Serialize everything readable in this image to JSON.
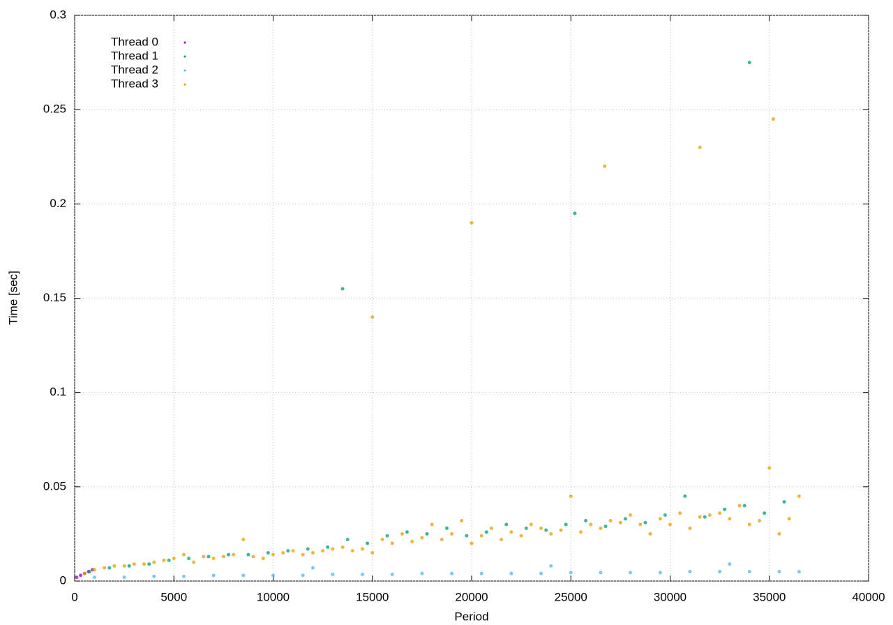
{
  "chart_data": {
    "type": "scatter",
    "x_label": "Period",
    "y_label": "Time [sec]",
    "xlim": [
      0,
      40000
    ],
    "ylim": [
      0,
      0.3
    ],
    "xticks": [
      0,
      5000,
      10000,
      15000,
      20000,
      25000,
      30000,
      35000,
      40000
    ],
    "yticks": [
      0,
      0.05,
      0.1,
      0.15,
      0.2,
      0.25,
      0.3
    ],
    "grid": true,
    "legend": "top-left",
    "series": [
      {
        "name": "Thread 0",
        "color": "#9400d3",
        "x": [
          100,
          300,
          500,
          700,
          900
        ],
        "values": [
          0.002,
          0.003,
          0.004,
          0.005,
          0.006
        ]
      },
      {
        "name": "Thread 1",
        "color": "#009e73",
        "x": [
          750,
          1750,
          2750,
          3750,
          4750,
          5750,
          6750,
          7750,
          8750,
          9750,
          10750,
          11750,
          12750,
          13750,
          14750,
          15750,
          16750,
          17750,
          18750,
          19750,
          20750,
          21750,
          22750,
          23750,
          24750,
          25750,
          26750,
          27750,
          28750,
          29750,
          30750,
          31750,
          32750,
          33750,
          34750,
          35750,
          13500,
          25200,
          34000
        ],
        "values": [
          0.005,
          0.007,
          0.008,
          0.009,
          0.011,
          0.012,
          0.013,
          0.014,
          0.014,
          0.015,
          0.016,
          0.017,
          0.018,
          0.022,
          0.02,
          0.024,
          0.026,
          0.025,
          0.028,
          0.024,
          0.026,
          0.03,
          0.028,
          0.027,
          0.03,
          0.032,
          0.029,
          0.033,
          0.031,
          0.035,
          0.045,
          0.034,
          0.038,
          0.04,
          0.036,
          0.042,
          0.155,
          0.195,
          0.275
        ]
      },
      {
        "name": "Thread 2",
        "color": "#56b4e9",
        "x": [
          1000,
          2500,
          4000,
          5500,
          7000,
          8500,
          10000,
          11500,
          13000,
          14500,
          16000,
          17500,
          19000,
          20500,
          22000,
          23500,
          25000,
          26500,
          28000,
          29500,
          31000,
          32500,
          34000,
          35500,
          36500,
          12000,
          24000,
          33000
        ],
        "values": [
          0.002,
          0.002,
          0.0025,
          0.0025,
          0.003,
          0.003,
          0.003,
          0.003,
          0.0035,
          0.0035,
          0.0035,
          0.004,
          0.004,
          0.004,
          0.004,
          0.004,
          0.0045,
          0.0045,
          0.0045,
          0.0045,
          0.005,
          0.005,
          0.005,
          0.005,
          0.005,
          0.007,
          0.008,
          0.009
        ]
      },
      {
        "name": "Thread 3",
        "color": "#e69f00",
        "x": [
          500,
          1000,
          1500,
          2000,
          2500,
          3000,
          3500,
          4000,
          4500,
          5000,
          5500,
          6000,
          6500,
          7000,
          7500,
          8000,
          8500,
          9000,
          9500,
          10000,
          10500,
          11000,
          11500,
          12000,
          12500,
          13000,
          13500,
          14000,
          14500,
          15000,
          15500,
          16000,
          16500,
          17000,
          17500,
          18000,
          18500,
          19000,
          19500,
          20000,
          20500,
          21000,
          21500,
          22000,
          22500,
          23000,
          23500,
          24000,
          24500,
          25000,
          25500,
          26000,
          26500,
          27000,
          27500,
          28000,
          28500,
          29000,
          29500,
          30000,
          30500,
          31000,
          31500,
          32000,
          32500,
          33000,
          33500,
          34000,
          34500,
          35000,
          35500,
          36000,
          36500,
          15000,
          20000,
          26700,
          31500,
          35200
        ],
        "values": [
          0.004,
          0.006,
          0.007,
          0.008,
          0.008,
          0.009,
          0.009,
          0.01,
          0.011,
          0.012,
          0.014,
          0.01,
          0.013,
          0.012,
          0.013,
          0.014,
          0.022,
          0.013,
          0.012,
          0.014,
          0.015,
          0.016,
          0.014,
          0.015,
          0.016,
          0.017,
          0.018,
          0.016,
          0.017,
          0.015,
          0.022,
          0.02,
          0.025,
          0.021,
          0.023,
          0.03,
          0.022,
          0.025,
          0.032,
          0.02,
          0.024,
          0.028,
          0.022,
          0.026,
          0.024,
          0.03,
          0.028,
          0.025,
          0.027,
          0.045,
          0.026,
          0.03,
          0.028,
          0.032,
          0.031,
          0.035,
          0.03,
          0.025,
          0.033,
          0.03,
          0.036,
          0.028,
          0.034,
          0.035,
          0.036,
          0.033,
          0.04,
          0.03,
          0.032,
          0.06,
          0.025,
          0.033,
          0.045,
          0.14,
          0.19,
          0.22,
          0.23,
          0.245
        ]
      }
    ]
  }
}
